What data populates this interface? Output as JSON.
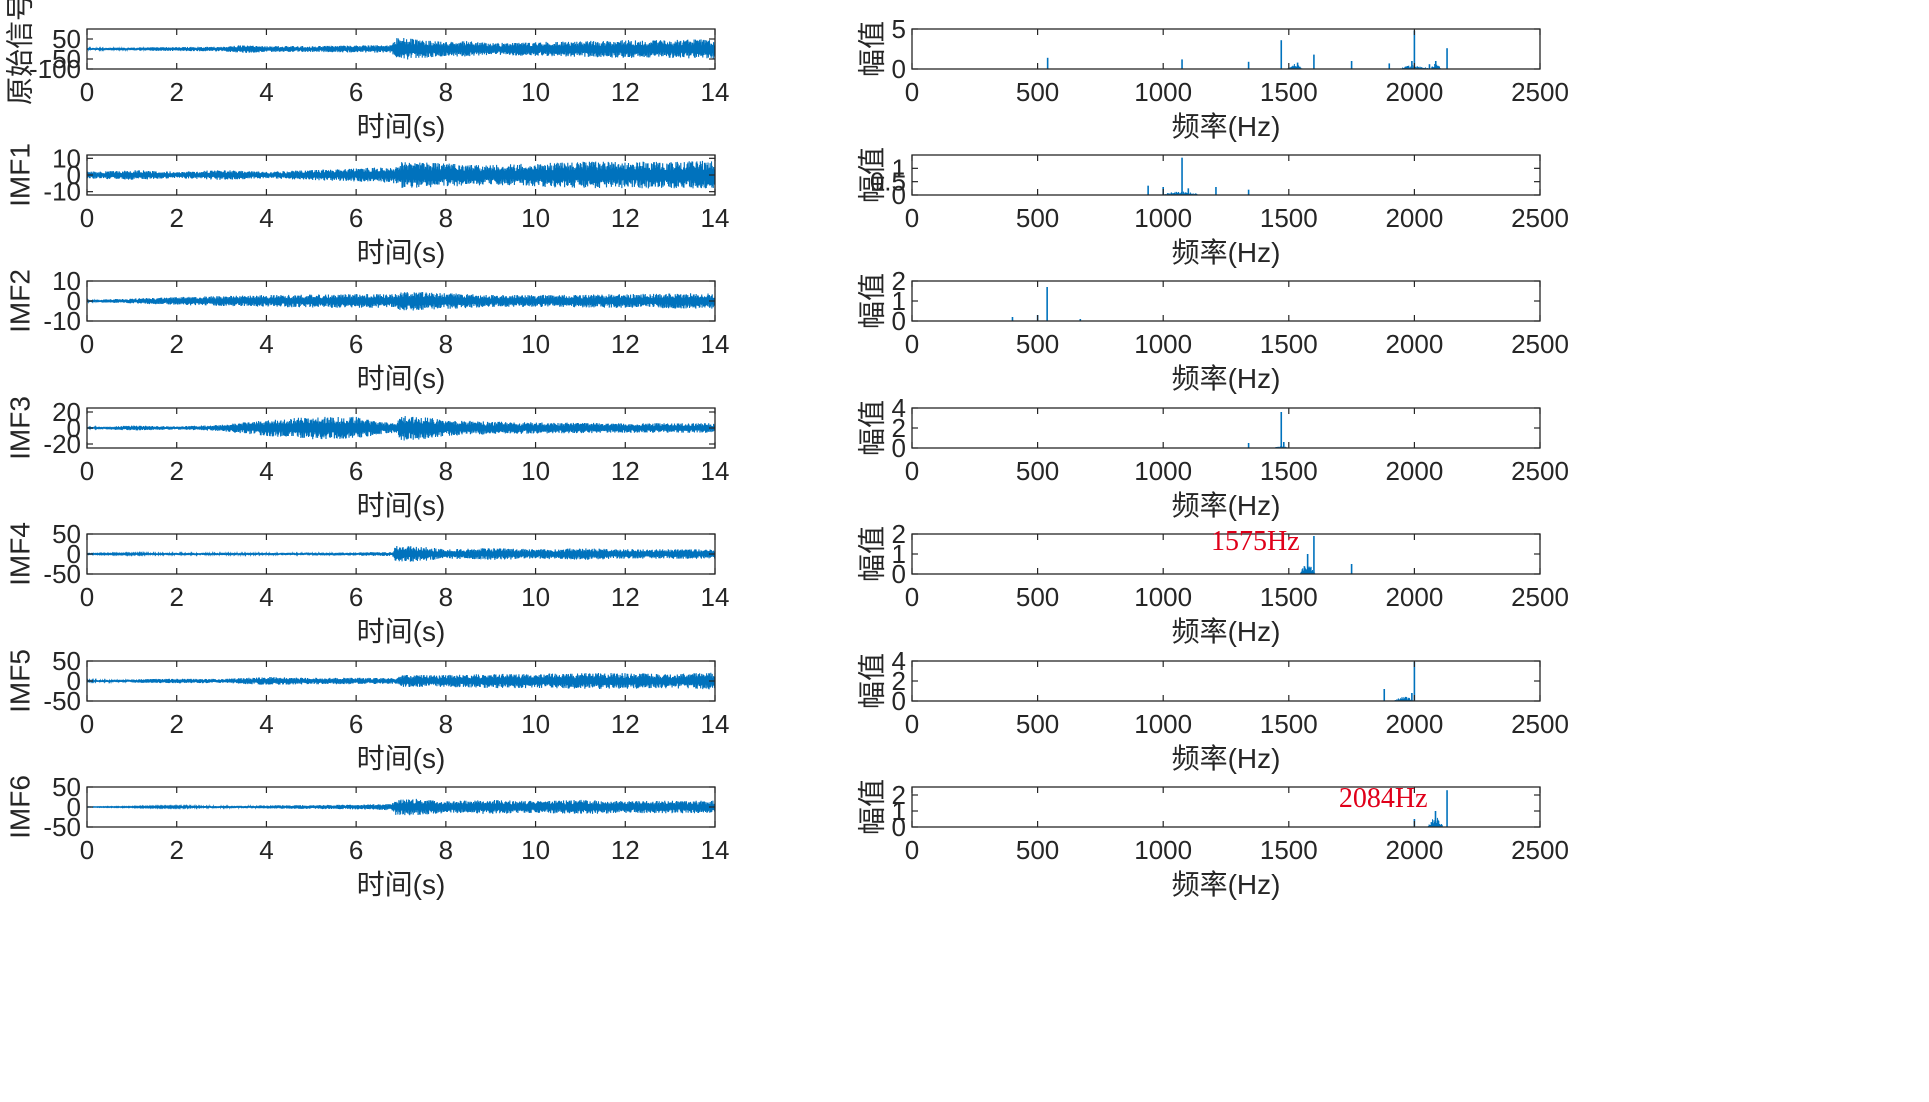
{
  "colors": {
    "series": "#0072BD",
    "axis": "#262626",
    "annotation": "#E0001A"
  },
  "chart_data": [
    {
      "id": "sig-raw-time",
      "type": "line",
      "ylabel": "原始信号",
      "xlabel": "时间(s)",
      "xlim": [
        0,
        14
      ],
      "xticks": [
        0,
        2,
        4,
        6,
        8,
        10,
        12,
        14
      ],
      "ylim": [
        -100,
        100
      ],
      "yticks": [
        -100,
        -50,
        50
      ],
      "ytick_labels": [
        "-100",
        "-50",
        "50"
      ],
      "envelope": {
        "t": [
          0,
          1,
          2,
          3,
          3.5,
          4,
          5,
          6,
          6.8,
          6.9,
          7.5,
          8,
          8.5,
          9,
          10,
          11,
          12,
          13,
          14
        ],
        "a": [
          5,
          8,
          10,
          12,
          20,
          15,
          15,
          18,
          20,
          60,
          45,
          35,
          40,
          30,
          35,
          40,
          45,
          45,
          50
        ]
      }
    },
    {
      "id": "sig-raw-freq",
      "type": "bar",
      "ylabel": "幅值",
      "xlabel": "频率(Hz)",
      "xlim": [
        0,
        2500
      ],
      "xticks": [
        0,
        500,
        1000,
        1500,
        2000,
        2500
      ],
      "ylim": [
        0,
        5
      ],
      "yticks": [
        0,
        5
      ],
      "peaks": {
        "f": [
          540,
          1075,
          1340,
          1470,
          1535,
          1600,
          1750,
          1900,
          1990,
          2000,
          2060,
          2085,
          2130
        ],
        "a": [
          1.4,
          1.2,
          0.9,
          3.6,
          0.8,
          1.8,
          1.0,
          0.7,
          1.0,
          4.8,
          0.6,
          1.0,
          2.6
        ]
      },
      "bumps": [
        {
          "center": 1525,
          "width": 60,
          "height": 0.6
        },
        {
          "center": 2000,
          "width": 120,
          "height": 0.5
        },
        {
          "center": 2085,
          "width": 40,
          "height": 0.7
        }
      ]
    },
    {
      "id": "imf1-time",
      "type": "line",
      "ylabel": "IMF1",
      "xlabel": "时间(s)",
      "xlim": [
        0,
        14
      ],
      "xticks": [
        0,
        2,
        4,
        6,
        8,
        10,
        12,
        14
      ],
      "ylim": [
        -12,
        12
      ],
      "yticks": [
        -10,
        0,
        10
      ],
      "ytick_labels": [
        "-10",
        "0",
        "10"
      ],
      "envelope": {
        "t": [
          0,
          1,
          2,
          3,
          4,
          5,
          6,
          6.9,
          7,
          8,
          9,
          10,
          11,
          12,
          13,
          14
        ],
        "a": [
          2,
          3,
          2,
          3,
          2,
          3,
          4,
          5,
          8,
          7,
          6,
          7,
          8,
          8,
          8,
          9
        ]
      }
    },
    {
      "id": "imf1-freq",
      "type": "bar",
      "ylabel": "幅值",
      "xlabel": "频率(Hz)",
      "xlim": [
        0,
        2500
      ],
      "xticks": [
        0,
        500,
        1000,
        1500,
        2000,
        2500
      ],
      "ylim": [
        0,
        1.5
      ],
      "yticks": [
        0,
        0.5,
        1
      ],
      "ytick_labels": [
        "0",
        "0.5",
        "1"
      ],
      "peaks": {
        "f": [
          940,
          1000,
          1075,
          1100,
          1210,
          1340
        ],
        "a": [
          0.35,
          0.3,
          1.4,
          0.25,
          0.3,
          0.2
        ]
      },
      "bumps": [
        {
          "center": 1070,
          "width": 150,
          "height": 0.12
        }
      ]
    },
    {
      "id": "imf2-time",
      "type": "line",
      "ylabel": "IMF2",
      "xlabel": "时间(s)",
      "xlim": [
        0,
        14
      ],
      "xticks": [
        0,
        2,
        4,
        6,
        8,
        10,
        12,
        14
      ],
      "ylim": [
        -10,
        10
      ],
      "yticks": [
        -10,
        0,
        10
      ],
      "ytick_labels": [
        "-10",
        "0",
        "10"
      ],
      "envelope": {
        "t": [
          0,
          2,
          4,
          6,
          6.9,
          7,
          8,
          9,
          10,
          12,
          14
        ],
        "a": [
          0.5,
          2,
          3,
          3.5,
          3.5,
          5,
          4,
          3,
          3,
          3.5,
          4
        ]
      }
    },
    {
      "id": "imf2-freq",
      "type": "bar",
      "ylabel": "幅值",
      "xlabel": "频率(Hz)",
      "xlim": [
        0,
        2500
      ],
      "xticks": [
        0,
        500,
        1000,
        1500,
        2000,
        2500
      ],
      "ylim": [
        0,
        2
      ],
      "yticks": [
        0,
        1,
        2
      ],
      "peaks": {
        "f": [
          400,
          500,
          538,
          670
        ],
        "a": [
          0.2,
          0.3,
          1.7,
          0.1
        ]
      },
      "bumps": []
    },
    {
      "id": "imf3-time",
      "type": "line",
      "ylabel": "IMF3",
      "xlabel": "时间(s)",
      "xlim": [
        0,
        14
      ],
      "xticks": [
        0,
        2,
        4,
        6,
        8,
        10,
        12,
        14
      ],
      "ylim": [
        -25,
        25
      ],
      "yticks": [
        -20,
        0,
        20
      ],
      "ytick_labels": [
        "-20",
        "0",
        "20"
      ],
      "envelope": {
        "t": [
          0,
          1,
          2,
          3,
          4,
          5,
          6,
          6.5,
          6.9,
          7,
          7.5,
          8,
          9,
          10,
          12,
          14
        ],
        "a": [
          1,
          3,
          2,
          4,
          10,
          14,
          14,
          8,
          6,
          16,
          14,
          10,
          8,
          7,
          6,
          6
        ]
      }
    },
    {
      "id": "imf3-freq",
      "type": "bar",
      "ylabel": "幅值",
      "xlabel": "频率(Hz)",
      "xlim": [
        0,
        2500
      ],
      "xticks": [
        0,
        500,
        1000,
        1500,
        2000,
        2500
      ],
      "ylim": [
        0,
        4
      ],
      "yticks": [
        0,
        2,
        4
      ],
      "peaks": {
        "f": [
          1340,
          1470,
          1480
        ],
        "a": [
          0.5,
          3.6,
          0.6
        ]
      },
      "bumps": [
        {
          "center": 1470,
          "width": 60,
          "height": 0.15
        }
      ]
    },
    {
      "id": "imf4-time",
      "type": "line",
      "ylabel": "IMF4",
      "xlabel": "时间(s)",
      "xlim": [
        0,
        14
      ],
      "xticks": [
        0,
        2,
        4,
        6,
        8,
        10,
        12,
        14
      ],
      "ylim": [
        -50,
        50
      ],
      "yticks": [
        -50,
        0,
        50
      ],
      "ytick_labels": [
        "-50",
        "0",
        "50"
      ],
      "envelope": {
        "t": [
          0,
          2,
          4,
          6,
          6.8,
          6.9,
          7.5,
          8,
          9,
          10,
          11,
          12,
          13,
          14
        ],
        "a": [
          1,
          3,
          3,
          4,
          5,
          22,
          18,
          12,
          15,
          12,
          15,
          12,
          12,
          12
        ]
      }
    },
    {
      "id": "imf4-freq",
      "type": "bar",
      "ylabel": "幅值",
      "xlabel": "频率(Hz)",
      "xlim": [
        0,
        2500
      ],
      "xticks": [
        0,
        500,
        1000,
        1500,
        2000,
        2500
      ],
      "ylim": [
        0,
        2
      ],
      "yticks": [
        0,
        1,
        2
      ],
      "peaks": {
        "f": [
          1575,
          1600,
          1750
        ],
        "a": [
          1.0,
          1.9,
          0.5
        ]
      },
      "bumps": [
        {
          "center": 1575,
          "width": 60,
          "height": 0.5
        }
      ],
      "annotation": {
        "text": "1575Hz",
        "f": 1575,
        "a": 1.0
      }
    },
    {
      "id": "imf5-time",
      "type": "line",
      "ylabel": "IMF5",
      "xlabel": "时间(s)",
      "xlim": [
        0,
        14
      ],
      "xticks": [
        0,
        2,
        4,
        6,
        8,
        10,
        12,
        14
      ],
      "ylim": [
        -50,
        50
      ],
      "yticks": [
        -50,
        0,
        50
      ],
      "ytick_labels": [
        "-50",
        "0",
        "50"
      ],
      "envelope": {
        "t": [
          0,
          1,
          2,
          3,
          4,
          5,
          6,
          6.9,
          7,
          8,
          9,
          10,
          11,
          12,
          13,
          14
        ],
        "a": [
          2,
          4,
          6,
          5,
          10,
          8,
          8,
          7,
          15,
          15,
          18,
          18,
          20,
          20,
          18,
          22
        ]
      }
    },
    {
      "id": "imf5-freq",
      "type": "bar",
      "ylabel": "幅值",
      "xlabel": "频率(Hz)",
      "xlim": [
        0,
        2500
      ],
      "xticks": [
        0,
        500,
        1000,
        1500,
        2000,
        2500
      ],
      "ylim": [
        0,
        4
      ],
      "yticks": [
        0,
        2,
        4
      ],
      "peaks": {
        "f": [
          1880,
          1990,
          2000
        ],
        "a": [
          1.2,
          0.8,
          3.9
        ]
      },
      "bumps": [
        {
          "center": 1960,
          "width": 80,
          "height": 0.4
        }
      ]
    },
    {
      "id": "imf6-time",
      "type": "line",
      "ylabel": "IMF6",
      "xlabel": "时间(s)",
      "xlim": [
        0,
        14
      ],
      "xticks": [
        0,
        2,
        4,
        6,
        8,
        10,
        12,
        14
      ],
      "ylim": [
        -50,
        50
      ],
      "yticks": [
        -50,
        0,
        50
      ],
      "ytick_labels": [
        "-50",
        "0",
        "50"
      ],
      "envelope": {
        "t": [
          0,
          2,
          4,
          6,
          6.8,
          6.9,
          7.5,
          8,
          9,
          10,
          11,
          12,
          13,
          14
        ],
        "a": [
          0.5,
          2,
          4,
          6,
          8,
          22,
          20,
          15,
          18,
          15,
          18,
          15,
          16,
          16
        ]
      }
    },
    {
      "id": "imf6-freq",
      "type": "bar",
      "ylabel": "幅值",
      "xlabel": "频率(Hz)",
      "xlim": [
        0,
        2500
      ],
      "xticks": [
        0,
        500,
        1000,
        1500,
        2000,
        2500
      ],
      "ylim": [
        0,
        2.5
      ],
      "yticks": [
        0,
        1,
        2
      ],
      "peaks": {
        "f": [
          2000,
          2084,
          2130
        ],
        "a": [
          0.5,
          1.0,
          2.3
        ]
      },
      "bumps": [
        {
          "center": 2084,
          "width": 60,
          "height": 0.6
        }
      ],
      "annotation": {
        "text": "2084Hz",
        "f": 2084,
        "a": 1.0
      }
    }
  ]
}
